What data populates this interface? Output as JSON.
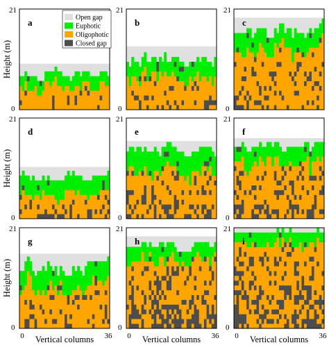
{
  "chart_data": {
    "type": "heatmap",
    "description_axes": {
      "xlabel": "Vertical columns",
      "ylabel": "Height (m)",
      "x_ticks": [
        "0",
        "36"
      ],
      "y_ticks": [
        "0",
        "21"
      ],
      "xlim": [
        0,
        36
      ],
      "ylim": [
        0,
        21
      ]
    },
    "legend": {
      "placement": "top-right of panel a",
      "entries": [
        {
          "name": "Open gap",
          "color": "#e0e0e0"
        },
        {
          "name": "Euphotic",
          "color": "#00ee00"
        },
        {
          "name": "Oligophotic",
          "color": "#ffa500"
        },
        {
          "name": "Closed gap",
          "color": "#4d4d4d"
        }
      ]
    },
    "panels": [
      {
        "label": "a",
        "open_gap_top": 9.6,
        "canopy_mean": 7.5,
        "canopy_amp": 1.0,
        "euphotic_depth": 2.6,
        "closed_density": 0.08,
        "seed": 11
      },
      {
        "label": "b",
        "open_gap_top": 13.2,
        "canopy_mean": 10.8,
        "canopy_amp": 1.3,
        "euphotic_depth": 3.6,
        "closed_density": 0.12,
        "seed": 23
      },
      {
        "label": "c",
        "open_gap_top": 19.2,
        "canopy_mean": 16.5,
        "canopy_amp": 1.8,
        "euphotic_depth": 4.0,
        "closed_density": 0.18,
        "seed": 37
      },
      {
        "label": "d",
        "open_gap_top": 10.8,
        "canopy_mean": 9.0,
        "canopy_amp": 0.9,
        "euphotic_depth": 3.6,
        "closed_density": 0.25,
        "seed": 41
      },
      {
        "label": "e",
        "open_gap_top": 16.2,
        "canopy_mean": 14.2,
        "canopy_amp": 1.2,
        "euphotic_depth": 4.6,
        "closed_density": 0.28,
        "seed": 53
      },
      {
        "label": "f",
        "open_gap_top": 16.8,
        "canopy_mean": 15.0,
        "canopy_amp": 1.0,
        "euphotic_depth": 3.6,
        "closed_density": 0.22,
        "seed": 67
      },
      {
        "label": "g",
        "open_gap_top": 15.6,
        "canopy_mean": 13.0,
        "canopy_amp": 1.6,
        "euphotic_depth": 4.2,
        "closed_density": 0.22,
        "seed": 71
      },
      {
        "label": "h",
        "open_gap_top": 19.2,
        "canopy_mean": 17.3,
        "canopy_amp": 0.9,
        "euphotic_depth": 3.0,
        "closed_density": 0.42,
        "seed": 83
      },
      {
        "label": "i",
        "open_gap_top": 21.0,
        "canopy_mean": 20.1,
        "canopy_amp": 0.6,
        "euphotic_depth": 2.6,
        "closed_density": 0.38,
        "seed": 97
      }
    ],
    "grid": false
  }
}
